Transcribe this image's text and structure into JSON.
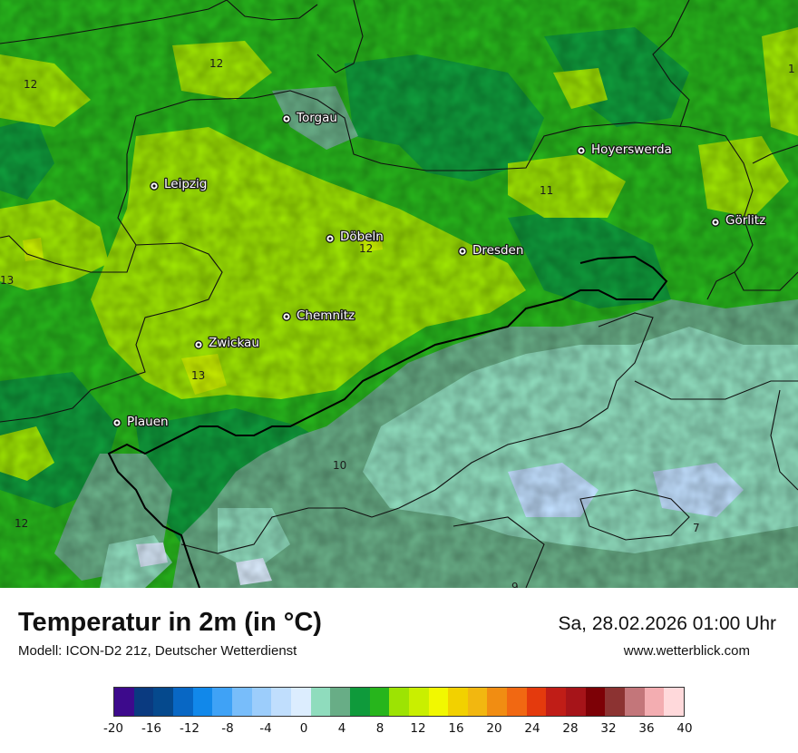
{
  "header": {
    "title": "Temperatur in 2m (in °C)",
    "model": "Modell: ICON-D2 21z, Deutscher Wetterdienst",
    "datetime": "Sa, 28.02.2026 01:00 Uhr",
    "website": "www.wetterblick.com"
  },
  "cities": [
    {
      "name": "Torgau",
      "id": "torgau"
    },
    {
      "name": "Hoyerswerda",
      "id": "hoyerswerda"
    },
    {
      "name": "Leipzig",
      "id": "leipzig"
    },
    {
      "name": "Görlitz",
      "id": "goerlitz"
    },
    {
      "name": "Döbeln",
      "id": "doebeln"
    },
    {
      "name": "Dresden",
      "id": "dresden"
    },
    {
      "name": "Chemnitz",
      "id": "chemnitz"
    },
    {
      "name": "Zwickau",
      "id": "zwickau"
    },
    {
      "name": "Plauen",
      "id": "plauen"
    }
  ],
  "isotherm_labels": [
    "12",
    "12",
    "1",
    "11",
    "12",
    "13",
    "13",
    "10",
    "12",
    "7",
    "9"
  ],
  "legend": {
    "colors": [
      "#3d0a8c",
      "#0a3a80",
      "#05498d",
      "#0867c4",
      "#1188ea",
      "#3fa2f6",
      "#78bdfa",
      "#9ccdfb",
      "#c0defd",
      "#dcedfe",
      "#8fdcbd",
      "#68ad86",
      "#0f9a3b",
      "#27b51c",
      "#9de303",
      "#c9ef00",
      "#f2f800",
      "#f2d100",
      "#f2b710",
      "#f18d12",
      "#f16812",
      "#e43a0d",
      "#c01d17",
      "#a61419",
      "#7d0106",
      "#8c3332",
      "#c3767a",
      "#f3adb1",
      "#ffd9db"
    ],
    "ticks": [
      "-20",
      "-16",
      "-12",
      "-8",
      "-4",
      "0",
      "4",
      "8",
      "12",
      "16",
      "20",
      "24",
      "28",
      "32",
      "36",
      "40"
    ]
  }
}
